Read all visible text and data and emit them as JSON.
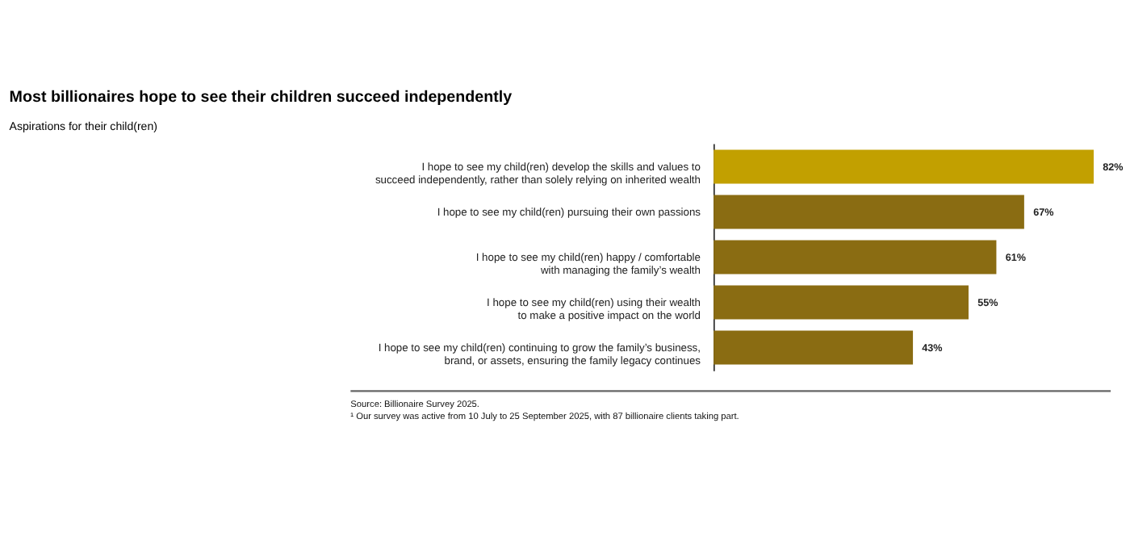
{
  "chart_data": {
    "type": "bar",
    "orientation": "horizontal",
    "title": "Most billionaires hope to see their children succeed independently",
    "subtitle": "Aspirations for their child(ren)",
    "categories": [
      "I hope to see my child(ren) develop the skills and values to\nsucceed independently, rather than solely relying on inherited wealth",
      "I hope to see my child(ren) pursuing their own passions",
      "I hope to see my child(ren) happy / comfortable\nwith managing the family’s wealth",
      "I hope to see my child(ren) using their wealth\nto make a positive impact on the world",
      "I hope to see my child(ren) continuing to grow the family’s business,\nbrand, or assets, ensuring the family legacy continues"
    ],
    "values": [
      82,
      67,
      61,
      55,
      43
    ],
    "colors": [
      "#c2a000",
      "#8a6c12",
      "#8a6c12",
      "#8a6c12",
      "#8a6c12"
    ],
    "value_labels": [
      "82%",
      "67%",
      "61%",
      "55%",
      "43%"
    ],
    "annotations": [
      "Source: Billionaire Survey 2025.",
      "¹ Our survey was active from 10 July to 25 September 2025, with 87 billionaire clients taking part."
    ],
    "grid": false
  }
}
